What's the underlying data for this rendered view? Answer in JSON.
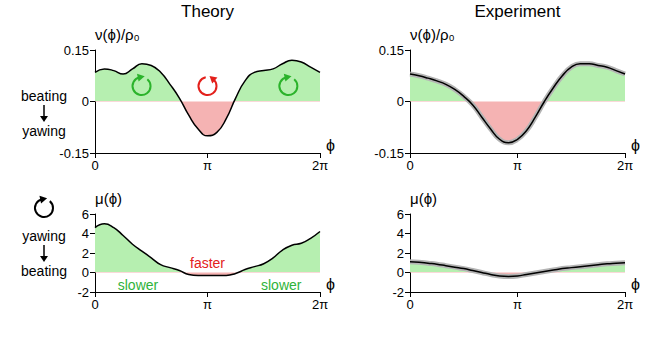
{
  "column_titles": [
    "Theory",
    "Experiment"
  ],
  "row_labels": [
    {
      "from": "beating",
      "to": "yawing"
    },
    {
      "from": "yawing",
      "to": "beating"
    }
  ],
  "chart_data": [
    {
      "type": "line",
      "color": "#000000",
      "xlabel": "ϕ",
      "ylabel": "ν(ϕ)/ρ₀",
      "x": [
        0,
        0.262,
        0.524,
        0.785,
        1.047,
        1.309,
        1.571,
        1.833,
        2.094,
        2.356,
        2.618,
        2.88,
        3.142,
        3.403,
        3.665,
        3.927,
        4.189,
        4.451,
        4.712,
        4.974,
        5.236,
        5.498,
        5.76,
        6.021,
        6.283
      ],
      "values": [
        0.085,
        0.095,
        0.09,
        0.08,
        0.095,
        0.11,
        0.105,
        0.085,
        0.05,
        0.01,
        -0.04,
        -0.08,
        -0.1,
        -0.09,
        -0.05,
        0.01,
        0.06,
        0.085,
        0.09,
        0.095,
        0.11,
        0.12,
        0.115,
        0.1,
        0.085
      ],
      "xlim": [
        0,
        6.283
      ],
      "xticks": [
        0,
        {
          "value": 3.142,
          "label": "π"
        },
        {
          "value": 6.283,
          "label": "2π"
        }
      ],
      "ylim": [
        -0.15,
        0.15
      ],
      "yticks": [
        -0.15,
        0,
        0.15
      ],
      "grid": false
    },
    {
      "type": "line",
      "color": "#000000",
      "xlabel": "ϕ",
      "ylabel": "ν(ϕ)/ρ₀",
      "x": [
        0,
        0.262,
        0.524,
        0.785,
        1.047,
        1.309,
        1.571,
        1.833,
        2.094,
        2.356,
        2.618,
        2.88,
        3.142,
        3.403,
        3.665,
        3.927,
        4.189,
        4.451,
        4.712,
        4.974,
        5.236,
        5.498,
        5.76,
        6.021,
        6.283
      ],
      "values": [
        0.08,
        0.075,
        0.068,
        0.06,
        0.05,
        0.035,
        0.015,
        -0.01,
        -0.045,
        -0.08,
        -0.11,
        -0.12,
        -0.11,
        -0.085,
        -0.045,
        0.0,
        0.04,
        0.075,
        0.1,
        0.11,
        0.11,
        0.105,
        0.1,
        0.09,
        0.08
      ],
      "xlim": [
        0,
        6.283
      ],
      "xticks": [
        0,
        {
          "value": 3.142,
          "label": "π"
        },
        {
          "value": 6.283,
          "label": "2π"
        }
      ],
      "ylim": [
        -0.15,
        0.15
      ],
      "yticks": [
        -0.15,
        0,
        0.15
      ],
      "grid": false
    },
    {
      "type": "line",
      "color": "#000000",
      "xlabel": "ϕ",
      "ylabel": "μ(ϕ)",
      "x": [
        0,
        0.262,
        0.524,
        0.785,
        1.047,
        1.309,
        1.571,
        1.833,
        2.094,
        2.356,
        2.618,
        2.88,
        3.142,
        3.403,
        3.665,
        3.927,
        4.189,
        4.451,
        4.712,
        4.974,
        5.236,
        5.498,
        5.76,
        6.021,
        6.283
      ],
      "values": [
        4.6,
        5.0,
        4.6,
        3.8,
        2.9,
        2.2,
        1.5,
        0.8,
        0.5,
        0.2,
        -0.2,
        -0.3,
        -0.3,
        -0.3,
        -0.3,
        -0.1,
        0.3,
        0.6,
        0.9,
        1.5,
        2.3,
        2.8,
        3.0,
        3.5,
        4.2
      ],
      "xlim": [
        0,
        6.283
      ],
      "xticks": [
        0,
        {
          "value": 3.142,
          "label": "π"
        },
        {
          "value": 6.283,
          "label": "2π"
        }
      ],
      "ylim": [
        -2,
        6
      ],
      "yticks": [
        -2,
        0,
        2,
        4,
        6
      ],
      "grid": false,
      "annotations": [
        {
          "text": "faster",
          "x": 3.142,
          "y": 1.0,
          "color": "#e3201b"
        },
        {
          "text": "slower",
          "x": 1.2,
          "y": -1.3,
          "color": "#2fb33a"
        },
        {
          "text": "slower",
          "x": 5.2,
          "y": -1.3,
          "color": "#2fb33a"
        }
      ]
    },
    {
      "type": "line",
      "color": "#000000",
      "xlabel": "ϕ",
      "ylabel": "μ(ϕ)",
      "x": [
        0,
        0.262,
        0.524,
        0.785,
        1.047,
        1.309,
        1.571,
        1.833,
        2.094,
        2.356,
        2.618,
        2.88,
        3.142,
        3.403,
        3.665,
        3.927,
        4.189,
        4.451,
        4.712,
        4.974,
        5.236,
        5.498,
        5.76,
        6.021,
        6.283
      ],
      "values": [
        1.1,
        1.05,
        0.95,
        0.85,
        0.7,
        0.55,
        0.4,
        0.2,
        0.0,
        -0.2,
        -0.35,
        -0.4,
        -0.35,
        -0.2,
        -0.05,
        0.1,
        0.25,
        0.4,
        0.5,
        0.6,
        0.7,
        0.8,
        0.9,
        0.95,
        1.0
      ],
      "xlim": [
        0,
        6.283
      ],
      "xticks": [
        0,
        {
          "value": 3.142,
          "label": "π"
        },
        {
          "value": 6.283,
          "label": "2π"
        }
      ],
      "ylim": [
        -2,
        6
      ],
      "yticks": [
        -2,
        0,
        2,
        4,
        6
      ],
      "grid": false
    }
  ]
}
